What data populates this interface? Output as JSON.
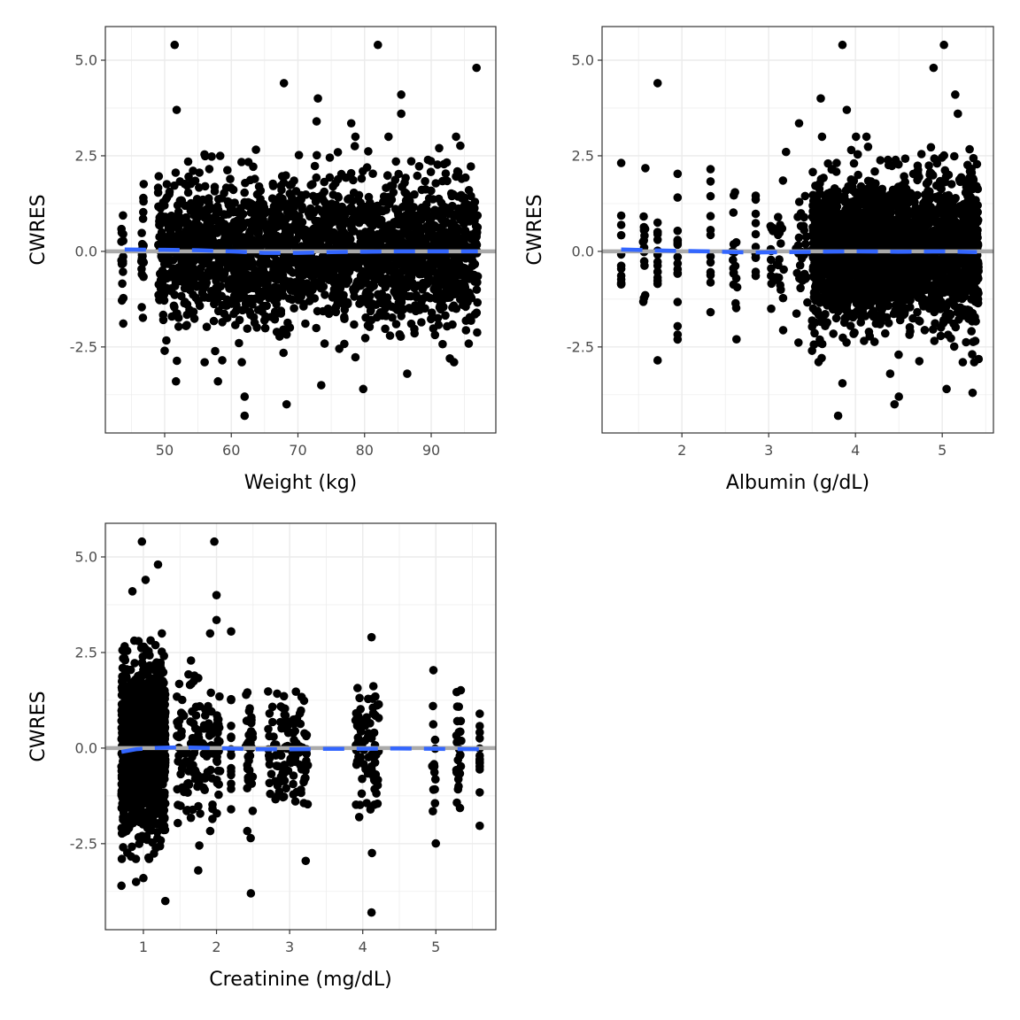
{
  "colors": {
    "point": "#000000",
    "reference": "#aaaaaa",
    "smooth": "#3366ff",
    "grid": "#ebebeb",
    "border": "#333333"
  },
  "chart_data": [
    {
      "type": "scatter",
      "title": "",
      "xlabel": "Weight (kg)",
      "ylabel": "CWRES",
      "xlim": [
        41.1,
        99.7
      ],
      "ylim": [
        -4.75,
        5.88
      ],
      "xticks": [
        50,
        60,
        70,
        80,
        90
      ],
      "xtick_labels": [
        "50",
        "60",
        "70",
        "80",
        "90"
      ],
      "yticks": [
        5.0,
        2.5,
        0.0,
        -2.5
      ],
      "ytick_labels": [
        "5.0",
        "2.5",
        "0.0",
        "-2.5"
      ],
      "reference_line_y": 0,
      "clusters": [
        {
          "x_min": 43.5,
          "x_max": 43.8,
          "n": 16,
          "sd": 0.8
        },
        {
          "x_min": 46.5,
          "x_max": 46.9,
          "n": 22,
          "sd": 0.9
        },
        {
          "x_min": 49,
          "x_max": 97,
          "n": 2400,
          "sd": 0.95
        }
      ],
      "points": [
        [
          51.5,
          5.4
        ],
        [
          82,
          5.4
        ],
        [
          96.8,
          4.8
        ],
        [
          67.9,
          4.4
        ],
        [
          73,
          4.0
        ],
        [
          85.5,
          4.1
        ],
        [
          51.8,
          3.7
        ],
        [
          85.5,
          3.6
        ],
        [
          72.8,
          3.4
        ],
        [
          78,
          3.35
        ],
        [
          62,
          -4.3
        ],
        [
          68.3,
          -4.0
        ],
        [
          62,
          -3.8
        ],
        [
          73.5,
          -3.5
        ],
        [
          79.8,
          -3.6
        ],
        [
          51.7,
          -3.4
        ],
        [
          58,
          -3.4
        ],
        [
          86.4,
          -3.2
        ],
        [
          92.8,
          -2.8
        ],
        [
          50,
          -2.6
        ],
        [
          56,
          -2.9
        ]
      ],
      "smooth": [
        [
          44,
          0.05
        ],
        [
          50,
          0.04
        ],
        [
          55,
          0.03
        ],
        [
          60,
          0.0
        ],
        [
          65,
          -0.04
        ],
        [
          70,
          -0.04
        ],
        [
          75,
          -0.02
        ],
        [
          80,
          -0.01
        ],
        [
          85,
          0.0
        ],
        [
          90,
          0.0
        ],
        [
          97,
          0.0
        ]
      ]
    },
    {
      "type": "scatter",
      "title": "",
      "xlabel": "Albumin (g/dL)",
      "ylabel": "CWRES",
      "xlim": [
        1.08,
        5.59
      ],
      "ylim": [
        -4.75,
        5.88
      ],
      "xticks": [
        2,
        3,
        4,
        5
      ],
      "xtick_labels": [
        "2",
        "3",
        "4",
        "5"
      ],
      "yticks": [
        5.0,
        2.5,
        0.0,
        -2.5
      ],
      "ytick_labels": [
        "5.0",
        "2.5",
        "0.0",
        "-2.5"
      ],
      "reference_line_y": 0,
      "clusters": [
        {
          "x_min": 1.3,
          "x_max": 1.3,
          "n": 12,
          "sd": 0.9
        },
        {
          "x_min": 1.55,
          "x_max": 1.58,
          "n": 15,
          "sd": 0.8
        },
        {
          "x_min": 1.72,
          "x_max": 1.72,
          "n": 15,
          "sd": 0.9
        },
        {
          "x_min": 1.95,
          "x_max": 1.95,
          "n": 16,
          "sd": 1.1
        },
        {
          "x_min": 2.33,
          "x_max": 2.33,
          "n": 12,
          "sd": 0.9
        },
        {
          "x_min": 2.58,
          "x_max": 2.64,
          "n": 18,
          "sd": 0.9
        },
        {
          "x_min": 2.85,
          "x_max": 2.85,
          "n": 12,
          "sd": 0.8
        },
        {
          "x_min": 3.02,
          "x_max": 3.18,
          "n": 30,
          "sd": 0.9
        },
        {
          "x_min": 3.3,
          "x_max": 3.45,
          "n": 30,
          "sd": 0.9
        },
        {
          "x_min": 3.5,
          "x_max": 5.42,
          "n": 2400,
          "sd": 0.95
        }
      ],
      "points": [
        [
          3.85,
          5.4
        ],
        [
          5.02,
          5.4
        ],
        [
          4.9,
          4.8
        ],
        [
          1.72,
          4.4
        ],
        [
          3.6,
          4.0
        ],
        [
          5.15,
          4.1
        ],
        [
          3.9,
          3.7
        ],
        [
          5.18,
          3.6
        ],
        [
          3.35,
          3.35
        ],
        [
          3.2,
          2.6
        ],
        [
          1.72,
          -2.85
        ],
        [
          3.8,
          -4.3
        ],
        [
          4.45,
          -4.0
        ],
        [
          4.5,
          -3.8
        ],
        [
          3.85,
          -3.45
        ],
        [
          5.05,
          -3.6
        ],
        [
          5.35,
          -3.7
        ],
        [
          4.4,
          -3.2
        ],
        [
          3.5,
          -2.6
        ]
      ],
      "smooth": [
        [
          1.3,
          0.05
        ],
        [
          1.8,
          0.02
        ],
        [
          2.3,
          0.0
        ],
        [
          2.8,
          -0.03
        ],
        [
          3.2,
          -0.02
        ],
        [
          3.6,
          -0.01
        ],
        [
          4.0,
          0.0
        ],
        [
          4.5,
          -0.01
        ],
        [
          5.0,
          0.0
        ],
        [
          5.4,
          -0.02
        ]
      ]
    },
    {
      "type": "scatter",
      "title": "",
      "xlabel": "Creatinine (mg/dL)",
      "ylabel": "CWRES",
      "xlim": [
        0.48,
        5.82
      ],
      "ylim": [
        -4.75,
        5.88
      ],
      "xticks": [
        1,
        2,
        3,
        4,
        5
      ],
      "xtick_labels": [
        "1",
        "2",
        "3",
        "4",
        "5"
      ],
      "yticks": [
        5.0,
        2.5,
        0.0,
        -2.5
      ],
      "ytick_labels": [
        "5.0",
        "2.5",
        "0.0",
        "-2.5"
      ],
      "reference_line_y": 0,
      "clusters": [
        {
          "x_min": 0.7,
          "x_max": 1.3,
          "n": 1800,
          "sd": 1.0
        },
        {
          "x_min": 1.45,
          "x_max": 1.95,
          "n": 120,
          "sd": 0.9
        },
        {
          "x_min": 2.0,
          "x_max": 2.05,
          "n": 25,
          "sd": 1.0
        },
        {
          "x_min": 2.2,
          "x_max": 2.2,
          "n": 15,
          "sd": 0.9
        },
        {
          "x_min": 2.4,
          "x_max": 2.5,
          "n": 40,
          "sd": 0.9
        },
        {
          "x_min": 2.7,
          "x_max": 3.25,
          "n": 120,
          "sd": 0.8
        },
        {
          "x_min": 3.9,
          "x_max": 4.22,
          "n": 80,
          "sd": 0.9
        },
        {
          "x_min": 4.95,
          "x_max": 5.0,
          "n": 15,
          "sd": 0.9
        },
        {
          "x_min": 5.28,
          "x_max": 5.35,
          "n": 25,
          "sd": 0.9
        },
        {
          "x_min": 5.6,
          "x_max": 5.6,
          "n": 15,
          "sd": 0.8
        }
      ],
      "points": [
        [
          0.98,
          5.4
        ],
        [
          1.97,
          5.4
        ],
        [
          1.2,
          4.8
        ],
        [
          1.03,
          4.4
        ],
        [
          0.85,
          4.1
        ],
        [
          2.0,
          4.0
        ],
        [
          2.0,
          3.35
        ],
        [
          2.2,
          3.05
        ],
        [
          4.12,
          2.9
        ],
        [
          0.7,
          -3.6
        ],
        [
          1.3,
          -4.0
        ],
        [
          2.47,
          -3.8
        ],
        [
          4.12,
          -4.3
        ],
        [
          3.22,
          -2.95
        ],
        [
          1.75,
          -3.2
        ],
        [
          0.9,
          -3.5
        ],
        [
          1.0,
          -3.4
        ]
      ],
      "smooth": [
        [
          0.7,
          -0.1
        ],
        [
          0.9,
          -0.03
        ],
        [
          1.1,
          0.0
        ],
        [
          1.5,
          0.02
        ],
        [
          2.0,
          0.0
        ],
        [
          2.5,
          -0.03
        ],
        [
          3.0,
          -0.03
        ],
        [
          3.5,
          -0.02
        ],
        [
          4.0,
          -0.02
        ],
        [
          4.5,
          -0.01
        ],
        [
          5.0,
          -0.02
        ],
        [
          5.6,
          -0.03
        ]
      ]
    }
  ]
}
